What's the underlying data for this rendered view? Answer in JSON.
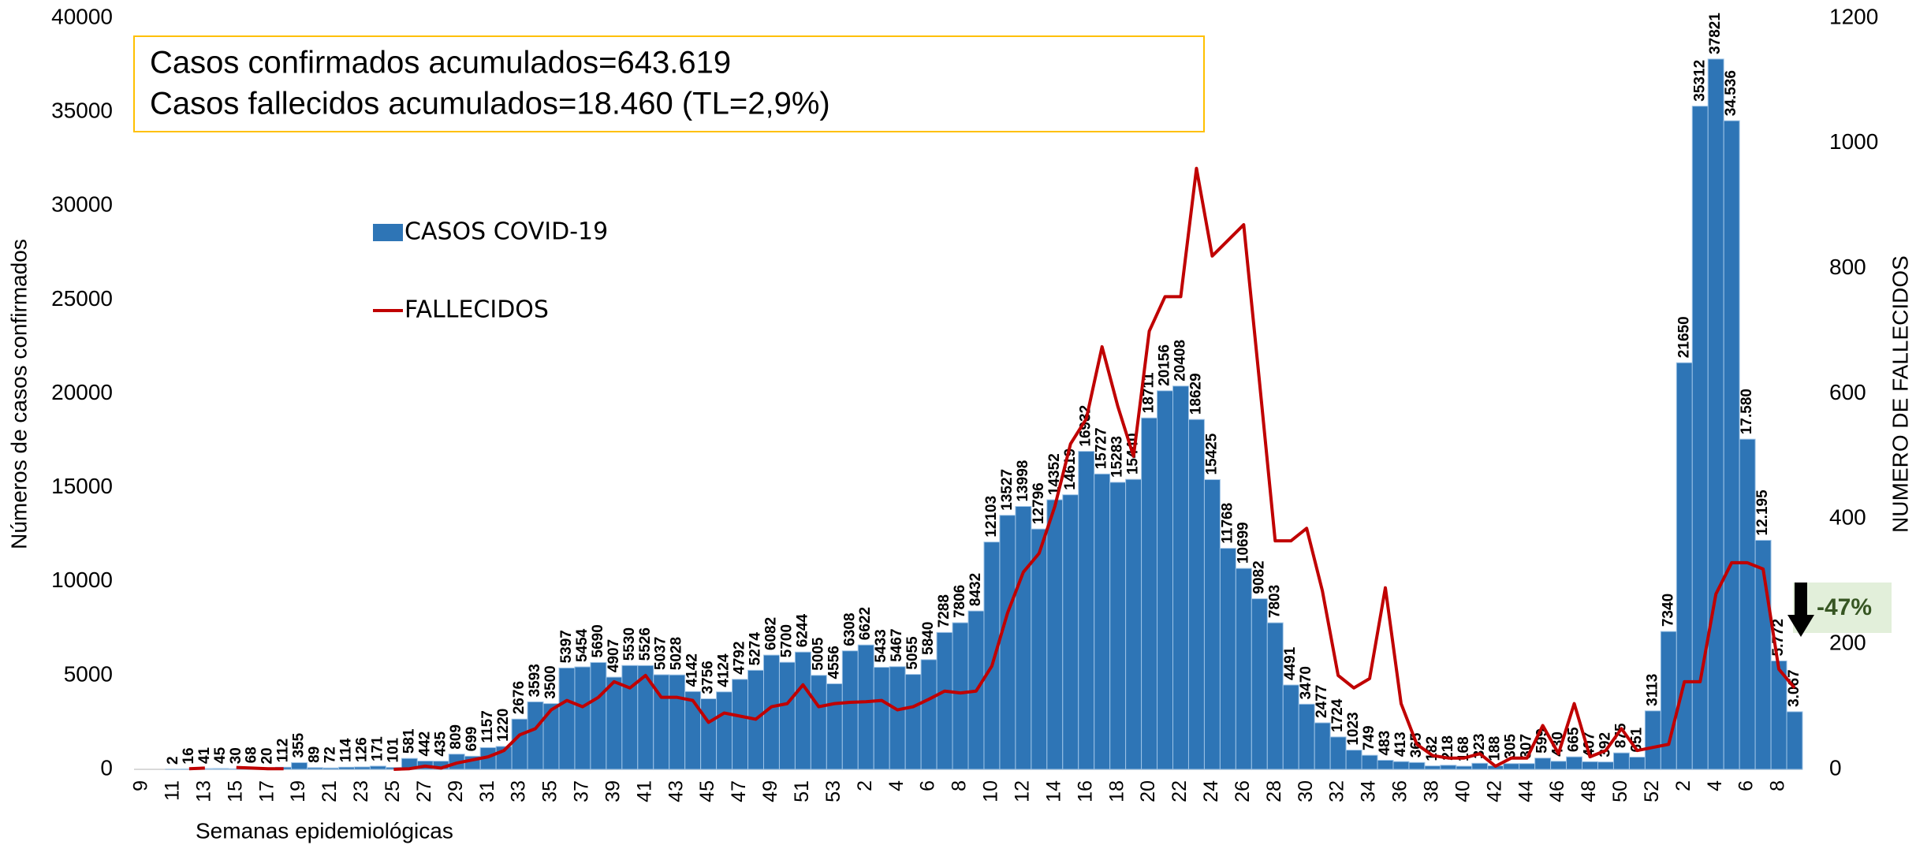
{
  "chart_data": {
    "type": "bar",
    "annotations": [
      "Casos confirmados acumulados=643.619",
      "Casos fallecidos acumulados=18.460 (TL=2,9%)",
      "-47%"
    ],
    "x_label": "Semanas epidemiológicas",
    "y_label": "Números de casos confirmados",
    "y2_label": "NUMERO DE FALLECIDOS",
    "legend": "upper left",
    "categories": [
      "9",
      null,
      "11",
      null,
      "13",
      null,
      "15",
      null,
      "17",
      null,
      "19",
      null,
      "21",
      null,
      "23",
      null,
      "25",
      null,
      "27",
      null,
      "29",
      null,
      "31",
      null,
      "33",
      null,
      "35",
      null,
      "37",
      null,
      "39",
      null,
      "41",
      null,
      "43",
      null,
      "45",
      null,
      "47",
      null,
      "49",
      null,
      "51",
      null,
      "53",
      null,
      "2",
      null,
      "4",
      null,
      "6",
      null,
      "8",
      null,
      "10",
      null,
      "12",
      null,
      "14",
      null,
      "16",
      null,
      "18",
      null,
      "20",
      null,
      "22",
      null,
      "24",
      null,
      "26",
      null,
      "28",
      null,
      "30",
      null,
      "32",
      null,
      "34",
      null,
      "36",
      null,
      "38",
      null,
      "40",
      null,
      "42",
      null,
      "44",
      null,
      "46",
      null,
      "48",
      null,
      "50",
      null,
      "52",
      null,
      "2",
      null,
      "4",
      null,
      "6",
      null,
      "8",
      null
    ],
    "series": [
      {
        "name": "CASOS COVID-19",
        "type": "bar",
        "color": "#2e75b6",
        "values": [
          null,
          null,
          2,
          16,
          41,
          45,
          30,
          68,
          20,
          112,
          355,
          89,
          72,
          114,
          126,
          171,
          101,
          581,
          442,
          435,
          809,
          699,
          1157,
          1220,
          2676,
          3593,
          3500,
          5397,
          5454,
          5690,
          4907,
          5530,
          5526,
          5037,
          5028,
          4142,
          3756,
          4124,
          4792,
          5274,
          6082,
          5700,
          6244,
          5005,
          4556,
          6308,
          6622,
          5433,
          5467,
          5055,
          5840,
          7288,
          7806,
          8432,
          12103,
          13527,
          13998,
          12796,
          14352,
          14619,
          16932,
          15727,
          15283,
          15440,
          18711,
          20156,
          20408,
          18629,
          15425,
          11768,
          10699,
          9082,
          7803,
          4491,
          3470,
          2477,
          1724,
          1023,
          749,
          483,
          413,
          365,
          182,
          218,
          168,
          323,
          188,
          305,
          307,
          599,
          430,
          665,
          407,
          392,
          875,
          651,
          3113,
          7340,
          21650,
          35312,
          37821,
          34536,
          17580,
          12195,
          5772,
          3067
        ],
        "value_labels": [
          null,
          null,
          "2",
          "16",
          "41",
          "45",
          "30",
          "68",
          "20",
          "112",
          "355",
          "89",
          "72",
          "114",
          "126",
          "171",
          "101",
          "581",
          "442",
          "435",
          "809",
          "699",
          "1157",
          "1220",
          "2676",
          "3593",
          "3500",
          "5397",
          "5454",
          "5690",
          "4907",
          "5530",
          "5526",
          "5037",
          "5028",
          "4142",
          "3756",
          "4124",
          "4792",
          "5274",
          "6082",
          "5700",
          "6244",
          "5005",
          "4556",
          "6308",
          "6622",
          "5433",
          "5467",
          "5055",
          "5840",
          "7288",
          "7806",
          "8432",
          "12103",
          "13527",
          "13998",
          "12796",
          "14352",
          "14619",
          "16932",
          "15727",
          "15283",
          "15440",
          "18711",
          "20156",
          "20408",
          "18629",
          "15425",
          "11768",
          "10699",
          "9082",
          "7803",
          "4491",
          "3470",
          "2477",
          "1724",
          "1023",
          "749",
          "483",
          "413",
          "365",
          "182",
          "218",
          "168",
          "323",
          "188",
          "305",
          "307",
          "599",
          "430",
          "665",
          "407",
          "392",
          "875",
          "651",
          "3113",
          "7340",
          "21650",
          "35312",
          "37821",
          "34.536",
          "17.580",
          "12.195",
          "5.772",
          "3.067"
        ]
      },
      {
        "name": "FALLECIDOS",
        "type": "line",
        "color": "#c00000",
        "axis": "y2",
        "values": [
          null,
          null,
          null,
          1,
          2,
          null,
          3,
          2,
          1,
          1,
          null,
          null,
          null,
          null,
          null,
          null,
          0,
          1,
          5,
          2,
          10,
          15,
          20,
          30,
          55,
          65,
          95,
          110,
          100,
          115,
          140,
          130,
          150,
          115,
          115,
          110,
          75,
          90,
          85,
          80,
          100,
          105,
          135,
          100,
          105,
          107,
          108,
          110,
          95,
          100,
          112,
          125,
          122,
          125,
          165,
          250,
          315,
          345,
          420,
          520,
          560,
          675,
          580,
          500,
          700,
          755,
          755,
          960,
          820,
          845,
          870,
          620,
          365,
          365,
          385,
          285,
          150,
          130,
          145,
          290,
          105,
          40,
          22,
          18,
          18,
          25,
          5,
          18,
          18,
          70,
          25,
          105,
          20,
          30,
          65,
          30,
          35,
          40,
          140,
          140,
          280,
          330,
          330,
          320,
          160,
          130
        ]
      }
    ],
    "ylim": [
      0,
      40000
    ],
    "yticks": [
      0,
      5000,
      10000,
      15000,
      20000,
      25000,
      30000,
      35000,
      40000
    ],
    "y2lim": [
      0,
      1200
    ],
    "y2ticks": [
      0,
      200,
      400,
      600,
      800,
      1000,
      1200
    ]
  }
}
